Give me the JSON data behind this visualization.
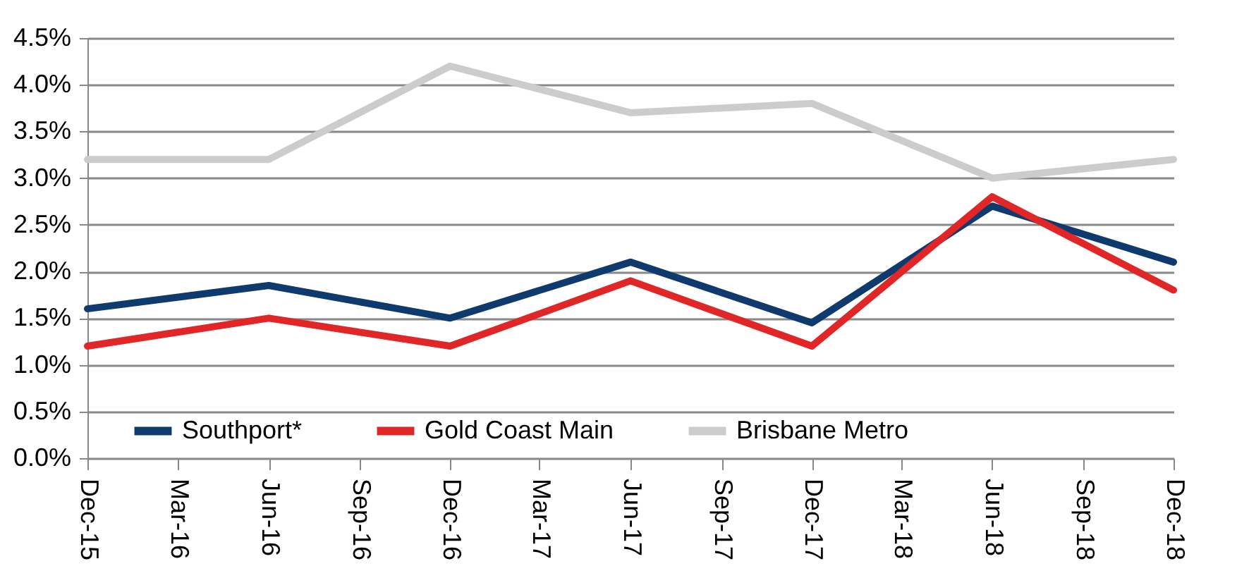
{
  "chart_data": {
    "type": "line",
    "x": [
      "2015-12",
      "2016-06",
      "2016-12",
      "2017-06",
      "2017-12",
      "2018-06",
      "2018-12"
    ],
    "series": [
      {
        "name": "Southport*",
        "color": "#0f3a6e",
        "values": [
          1.6,
          1.85,
          1.5,
          2.1,
          1.45,
          2.7,
          2.1
        ]
      },
      {
        "name": "Gold Coast Main",
        "color": "#e02626",
        "values": [
          1.2,
          1.5,
          1.2,
          1.9,
          1.2,
          2.8,
          1.8
        ]
      },
      {
        "name": "Brisbane Metro",
        "color": "#cccccc",
        "values": [
          3.2,
          3.2,
          4.2,
          3.7,
          3.8,
          3.0,
          3.2
        ]
      }
    ],
    "xlim": [
      "2015-12",
      "2018-12"
    ],
    "xticks": [
      {
        "value": "2015-12",
        "label": "Dec-15"
      },
      {
        "value": "2016-03",
        "label": "Mar-16"
      },
      {
        "value": "2016-06",
        "label": "Jun-16"
      },
      {
        "value": "2016-09",
        "label": "Sep-16"
      },
      {
        "value": "2016-12",
        "label": "Dec-16"
      },
      {
        "value": "2017-03",
        "label": "Mar-17"
      },
      {
        "value": "2017-06",
        "label": "Jun-17"
      },
      {
        "value": "2017-09",
        "label": "Sep-17"
      },
      {
        "value": "2017-12",
        "label": "Dec-17"
      },
      {
        "value": "2018-03",
        "label": "Mar-18"
      },
      {
        "value": "2018-06",
        "label": "Jun-18"
      },
      {
        "value": "2018-09",
        "label": "Sep-18"
      },
      {
        "value": "2018-12",
        "label": "Dec-18"
      }
    ],
    "ylim": [
      0,
      4.5
    ],
    "yticks": [
      {
        "value": 0,
        "label": "0.0%"
      },
      {
        "value": 0.5,
        "label": "0.5%"
      },
      {
        "value": 1,
        "label": "1.0%"
      },
      {
        "value": 1.5,
        "label": "1.5%"
      },
      {
        "value": 2,
        "label": "2.0%"
      },
      {
        "value": 2.5,
        "label": "2.5%"
      },
      {
        "value": 3,
        "label": "3.0%"
      },
      {
        "value": 3.5,
        "label": "3.5%"
      },
      {
        "value": 4,
        "label": "4.0%"
      },
      {
        "value": 4.5,
        "label": "4.5%"
      }
    ],
    "grid": "y",
    "legend": "bottom",
    "marker": "none",
    "line_style": "solid"
  }
}
